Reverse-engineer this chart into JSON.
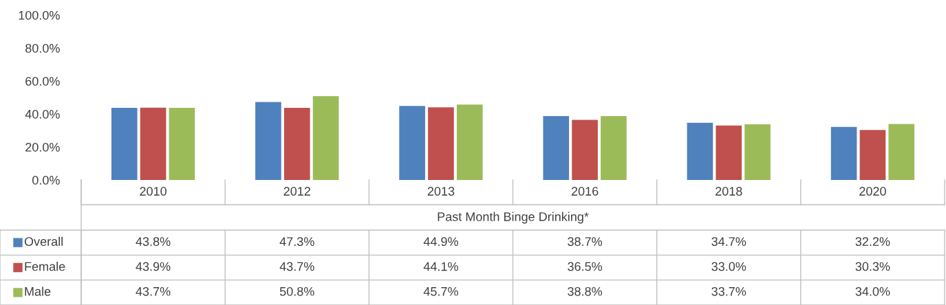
{
  "chart_data": {
    "type": "bar",
    "xlabel": "Past Month Binge Drinking*",
    "categories": [
      "2010",
      "2012",
      "2013",
      "2016",
      "2018",
      "2020"
    ],
    "ylim": [
      0,
      100
    ],
    "yticks": [
      {
        "value": 0,
        "label": "0.0%"
      },
      {
        "value": 20,
        "label": "20.0%"
      },
      {
        "value": 40,
        "label": "40.0%"
      },
      {
        "value": 60,
        "label": "60.0%"
      },
      {
        "value": 80,
        "label": "80.0%"
      },
      {
        "value": 100,
        "label": "100.0%"
      }
    ],
    "legend": "bottom",
    "grid": false,
    "series": [
      {
        "name": "Overall",
        "color": "#4f81bd",
        "values": [
          43.8,
          47.3,
          44.9,
          38.7,
          34.7,
          32.2
        ],
        "value_labels": [
          "43.8%",
          "47.3%",
          "44.9%",
          "38.7%",
          "34.7%",
          "32.2%"
        ]
      },
      {
        "name": "Female",
        "color": "#c0504d",
        "values": [
          43.9,
          43.7,
          44.1,
          36.5,
          33.0,
          30.3
        ],
        "value_labels": [
          "43.9%",
          "43.7%",
          "44.1%",
          "36.5%",
          "33.0%",
          "30.3%"
        ]
      },
      {
        "name": "Male",
        "color": "#9bbb59",
        "values": [
          43.7,
          50.8,
          45.7,
          38.8,
          33.7,
          34.0
        ],
        "value_labels": [
          "43.7%",
          "50.8%",
          "45.7%",
          "38.8%",
          "33.7%",
          "34.0%"
        ]
      }
    ]
  }
}
